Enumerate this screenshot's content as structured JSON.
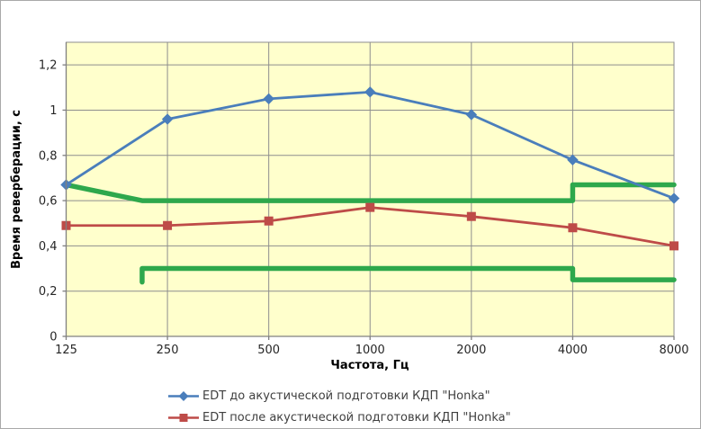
{
  "chart_data": {
    "type": "line",
    "title": "",
    "xlabel": "Частота, Гц",
    "ylabel": "Время реверберации, с",
    "categories": [
      "125",
      "250",
      "500",
      "1000",
      "2000",
      "4000",
      "8000"
    ],
    "y_ticks": [
      {
        "value": 0,
        "label": "0"
      },
      {
        "value": 0.2,
        "label": "0,2"
      },
      {
        "value": 0.4,
        "label": "0,4"
      },
      {
        "value": 0.6,
        "label": "0,6"
      },
      {
        "value": 0.8,
        "label": "0,8"
      },
      {
        "value": 1.0,
        "label": "1"
      },
      {
        "value": 1.2,
        "label": "1,2"
      }
    ],
    "ylim": [
      0,
      1.3
    ],
    "grid": true,
    "legend_position": "bottom",
    "plot_bg": "#ffffcc",
    "gridline_color": "#8e8e8e",
    "axis_color": "#808080",
    "tick_label_color": "#262626",
    "series": [
      {
        "name": "EDT до акустической подготовки КДП \"Honka\"",
        "color": "#4a7ebb",
        "marker": "diamond",
        "values": [
          0.67,
          0.96,
          1.05,
          1.08,
          0.98,
          0.78,
          0.61
        ]
      },
      {
        "name": "EDT после акустической подготовки КДП \"Honka\"",
        "color": "#be4b48",
        "marker": "square",
        "values": [
          0.49,
          0.49,
          0.51,
          0.57,
          0.53,
          0.48,
          0.4
        ]
      }
    ],
    "annotations": [
      {
        "id": "upper-bound",
        "color": "#2ea84c",
        "width": 5.5,
        "points": [
          [
            0,
            0.67
          ],
          [
            0.75,
            0.6
          ],
          [
            5,
            0.6
          ],
          [
            5,
            0.67
          ],
          [
            6,
            0.67
          ]
        ]
      },
      {
        "id": "lower-bound",
        "color": "#2ea84c",
        "width": 5.5,
        "points": [
          [
            0.75,
            0.24
          ],
          [
            0.75,
            0.3
          ],
          [
            5,
            0.3
          ],
          [
            5,
            0.25
          ],
          [
            6,
            0.25
          ]
        ]
      }
    ]
  }
}
